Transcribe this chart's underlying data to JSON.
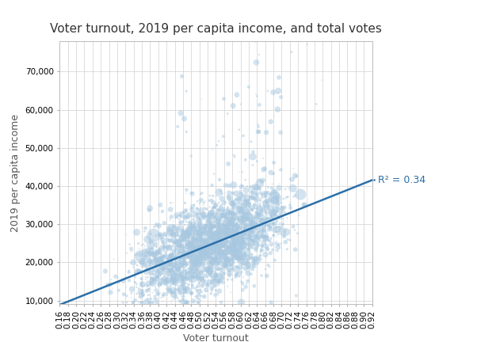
{
  "title": "Voter turnout, 2019 per capita income, and total votes",
  "xlabel": "Voter turnout",
  "ylabel": "2019 per capita income",
  "xlim": [
    0.16,
    0.92
  ],
  "ylim": [
    9000,
    78000
  ],
  "xticks": [
    0.16,
    0.18,
    0.2,
    0.22,
    0.24,
    0.26,
    0.28,
    0.3,
    0.32,
    0.34,
    0.36,
    0.38,
    0.4,
    0.42,
    0.44,
    0.46,
    0.48,
    0.5,
    0.52,
    0.54,
    0.56,
    0.58,
    0.6,
    0.62,
    0.64,
    0.66,
    0.68,
    0.7,
    0.72,
    0.74,
    0.76,
    0.78,
    0.8,
    0.82,
    0.84,
    0.86,
    0.88,
    0.9,
    0.92
  ],
  "yticks": [
    10000,
    20000,
    30000,
    40000,
    50000,
    60000,
    70000
  ],
  "scatter_color": "#a8c8e0",
  "scatter_alpha": 0.5,
  "line_color": "#2b6fa8",
  "line_width": 1.8,
  "r2_label": "R² = 0.34",
  "background_color": "#ffffff",
  "grid_color": "#d0d0d0",
  "n_points": 3000,
  "seed": 42,
  "reg_intercept": 2000,
  "reg_slope": 43000,
  "title_fontsize": 11,
  "label_fontsize": 9,
  "tick_fontsize": 7.5
}
